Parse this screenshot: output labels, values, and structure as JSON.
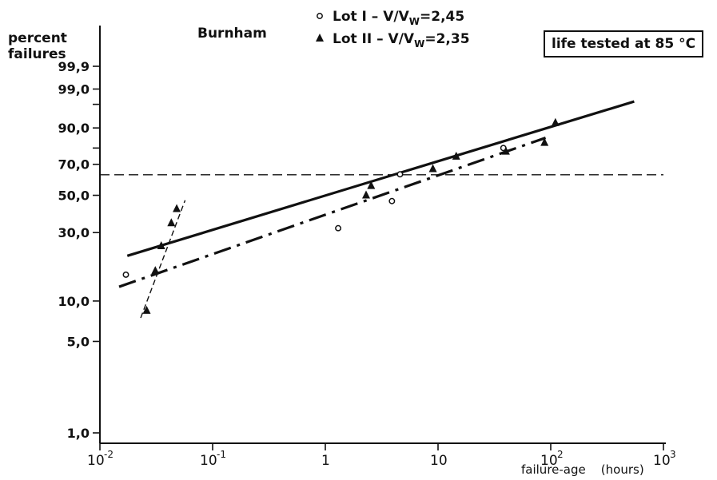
{
  "chart_data": {
    "type": "scatter",
    "title": "Burnham",
    "ylabel_lines": [
      "percent",
      "failures"
    ],
    "xlabel": "failure-age    (hours)",
    "annotation": "life tested at 85 °C",
    "x_scale": "log",
    "y_scale": "weibull-probability",
    "xlim": [
      0.01,
      1000
    ],
    "ylim": [
      1.0,
      99.9
    ],
    "y_ticks": [
      1.0,
      5.0,
      10.0,
      30.0,
      50.0,
      70.0,
      90.0,
      99.0,
      99.9
    ],
    "y_tick_labels": [
      "1,0",
      "5,0",
      "10,0",
      "30,0",
      "50,0",
      "70,0",
      "90,0",
      "99,0",
      "99,9"
    ],
    "x_ticks": [
      0.01,
      0.1,
      1,
      10,
      100,
      1000
    ],
    "x_tick_labels": [
      {
        "base": "10",
        "exp": "-2"
      },
      {
        "base": "10",
        "exp": "-1"
      },
      {
        "base": "1",
        "exp": ""
      },
      {
        "base": "10",
        "exp": ""
      },
      {
        "base": "10",
        "exp": "2"
      },
      {
        "base": "10",
        "exp": "3"
      }
    ],
    "horizontal_reference": 63.2,
    "grid": false,
    "legend_position": "top-center",
    "series": [
      {
        "name": "Lot I  –  V/Vw=2,45",
        "legend_main": "Lot I  –  V/V",
        "legend_sub": "W",
        "legend_tail": "=2,45",
        "marker": "circle-open",
        "x": [
          0.017,
          1.3,
          3.9,
          4.6,
          38
        ],
        "y": [
          15.5,
          32.0,
          46.5,
          63.5,
          80.0
        ]
      },
      {
        "name": "Lot II  –  V/Vw=2,35",
        "legend_main": "Lot II  –  V/V",
        "legend_sub": "W",
        "legend_tail": "=2,35",
        "marker": "triangle-filled",
        "x": [
          0.026,
          0.031,
          0.035,
          0.043,
          0.048,
          2.3,
          2.55,
          9.0,
          14.5,
          40,
          88,
          110
        ],
        "y": [
          8.5,
          16.5,
          24.5,
          34.5,
          42.0,
          50.0,
          56.0,
          67.0,
          75.0,
          78.0,
          83.0,
          92.0
        ]
      }
    ],
    "fit_lines": [
      {
        "style": "solid",
        "x": [
          0.0175,
          550
        ],
        "y": [
          21.0,
          97.5
        ]
      },
      {
        "style": "dash-dot",
        "x": [
          0.0148,
          90
        ],
        "y": [
          12.7,
          85.5
        ]
      },
      {
        "style": "dashed",
        "x": [
          0.023,
          0.057
        ],
        "y": [
          7.5,
          47.0
        ]
      }
    ]
  }
}
